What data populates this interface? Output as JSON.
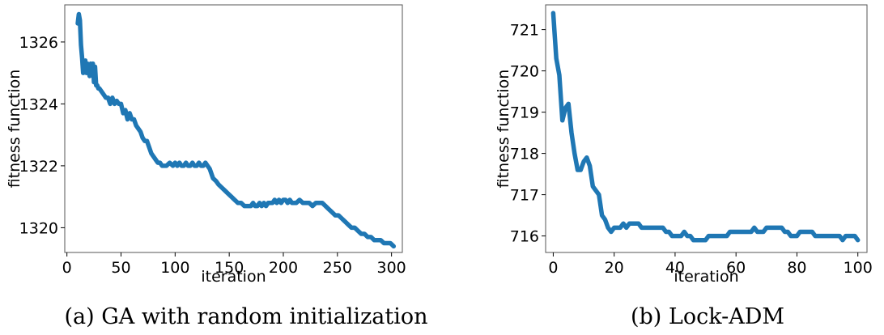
{
  "chart_data": [
    {
      "type": "line",
      "caption": "(a) GA with random initialization",
      "xlabel": "iteration",
      "ylabel": "fitness function",
      "xlim": [
        -2,
        310
      ],
      "ylim": [
        1319.2,
        1327.2
      ],
      "xticks": [
        0,
        50,
        100,
        150,
        200,
        250,
        300
      ],
      "yticks": [
        1320,
        1322,
        1324,
        1326
      ],
      "grid": false,
      "color": "#1f77b4",
      "series": [
        {
          "x": [
            10,
            11,
            12,
            13,
            14,
            15,
            16,
            17,
            18,
            19,
            20,
            21,
            22,
            23,
            24,
            25,
            26,
            27,
            28,
            29,
            30,
            32,
            34,
            36,
            38,
            40,
            42,
            44,
            46,
            48,
            50,
            52,
            54,
            56,
            58,
            60,
            62,
            64,
            66,
            68,
            70,
            72,
            74,
            76,
            78,
            80,
            82,
            84,
            86,
            88,
            90,
            92,
            95,
            98,
            100,
            102,
            104,
            106,
            108,
            110,
            112,
            114,
            116,
            118,
            120,
            122,
            124,
            126,
            128,
            130,
            132,
            135,
            138,
            140,
            143,
            146,
            149,
            152,
            155,
            158,
            161,
            164,
            167,
            170,
            172,
            174,
            176,
            178,
            180,
            182,
            184,
            186,
            188,
            190,
            192,
            194,
            196,
            198,
            200,
            202,
            204,
            206,
            208,
            210,
            212,
            215,
            218,
            221,
            224,
            227,
            230,
            233,
            236,
            239,
            242,
            245,
            248,
            251,
            254,
            257,
            260,
            263,
            266,
            269,
            272,
            275,
            278,
            281,
            284,
            287,
            290,
            293,
            296,
            299,
            302
          ],
          "y": [
            1326.6,
            1326.9,
            1326.7,
            1325.9,
            1325.5,
            1325.0,
            1325.2,
            1325.4,
            1325.0,
            1325.3,
            1325.1,
            1324.9,
            1325.3,
            1325.1,
            1325.3,
            1324.7,
            1325.2,
            1324.6,
            1324.6,
            1324.5,
            1324.5,
            1324.4,
            1324.3,
            1324.2,
            1324.2,
            1324.0,
            1324.2,
            1324.0,
            1324.1,
            1324.0,
            1324.0,
            1323.7,
            1323.8,
            1323.5,
            1323.7,
            1323.5,
            1323.5,
            1323.3,
            1323.2,
            1323.1,
            1322.9,
            1322.8,
            1322.8,
            1322.6,
            1322.4,
            1322.3,
            1322.2,
            1322.1,
            1322.1,
            1322.0,
            1322.0,
            1322.0,
            1322.1,
            1322.0,
            1322.1,
            1322.0,
            1322.1,
            1322.0,
            1322.0,
            1322.1,
            1322.0,
            1322.0,
            1322.1,
            1322.0,
            1322.0,
            1322.1,
            1322.0,
            1322.0,
            1322.1,
            1322.0,
            1321.9,
            1321.6,
            1321.5,
            1321.4,
            1321.3,
            1321.2,
            1321.1,
            1321.0,
            1320.9,
            1320.8,
            1320.8,
            1320.7,
            1320.7,
            1320.7,
            1320.8,
            1320.7,
            1320.7,
            1320.8,
            1320.7,
            1320.8,
            1320.7,
            1320.8,
            1320.8,
            1320.8,
            1320.9,
            1320.8,
            1320.9,
            1320.8,
            1320.9,
            1320.9,
            1320.8,
            1320.9,
            1320.8,
            1320.8,
            1320.8,
            1320.9,
            1320.8,
            1320.8,
            1320.8,
            1320.7,
            1320.8,
            1320.8,
            1320.8,
            1320.7,
            1320.6,
            1320.5,
            1320.4,
            1320.4,
            1320.3,
            1320.2,
            1320.1,
            1320.0,
            1320.0,
            1319.9,
            1319.8,
            1319.8,
            1319.7,
            1319.7,
            1319.6,
            1319.6,
            1319.6,
            1319.5,
            1319.5,
            1319.5,
            1319.4
          ]
        }
      ]
    },
    {
      "type": "line",
      "caption": "(b) Lock-ADM",
      "xlabel": "iteration",
      "ylabel": "fitness function",
      "xlim": [
        -2.5,
        103
      ],
      "ylim": [
        715.6,
        721.6
      ],
      "xticks": [
        0,
        20,
        40,
        60,
        80,
        100
      ],
      "yticks": [
        716,
        717,
        718,
        719,
        720,
        721
      ],
      "grid": false,
      "color": "#1f77b4",
      "series": [
        {
          "x": [
            0,
            1,
            2,
            3,
            4,
            5,
            6,
            7,
            8,
            9,
            10,
            11,
            12,
            13,
            14,
            15,
            16,
            17,
            18,
            19,
            20,
            21,
            22,
            23,
            24,
            25,
            26,
            27,
            28,
            29,
            30,
            31,
            32,
            33,
            34,
            35,
            36,
            37,
            38,
            39,
            40,
            41,
            42,
            43,
            44,
            45,
            46,
            47,
            48,
            49,
            50,
            51,
            52,
            53,
            54,
            55,
            56,
            57,
            58,
            59,
            60,
            61,
            62,
            63,
            64,
            65,
            66,
            67,
            68,
            69,
            70,
            71,
            72,
            73,
            74,
            75,
            76,
            77,
            78,
            79,
            80,
            81,
            82,
            83,
            84,
            85,
            86,
            87,
            88,
            89,
            90,
            91,
            92,
            93,
            94,
            95,
            96,
            97,
            98,
            99,
            100
          ],
          "y": [
            721.4,
            720.3,
            719.9,
            718.8,
            719.1,
            719.2,
            718.5,
            718.0,
            717.6,
            717.6,
            717.8,
            717.9,
            717.7,
            717.2,
            717.1,
            717.0,
            716.5,
            716.4,
            716.2,
            716.1,
            716.2,
            716.2,
            716.2,
            716.3,
            716.2,
            716.3,
            716.3,
            716.3,
            716.3,
            716.2,
            716.2,
            716.2,
            716.2,
            716.2,
            716.2,
            716.2,
            716.2,
            716.1,
            716.1,
            716.0,
            716.0,
            716.0,
            716.0,
            716.1,
            716.0,
            716.0,
            715.9,
            715.9,
            715.9,
            715.9,
            715.9,
            716.0,
            716.0,
            716.0,
            716.0,
            716.0,
            716.0,
            716.0,
            716.1,
            716.1,
            716.1,
            716.1,
            716.1,
            716.1,
            716.1,
            716.1,
            716.2,
            716.1,
            716.1,
            716.1,
            716.2,
            716.2,
            716.2,
            716.2,
            716.2,
            716.2,
            716.1,
            716.1,
            716.0,
            716.0,
            716.0,
            716.1,
            716.1,
            716.1,
            716.1,
            716.1,
            716.0,
            716.0,
            716.0,
            716.0,
            716.0,
            716.0,
            716.0,
            716.0,
            716.0,
            715.9,
            716.0,
            716.0,
            716.0,
            716.0,
            715.9
          ]
        }
      ]
    }
  ]
}
